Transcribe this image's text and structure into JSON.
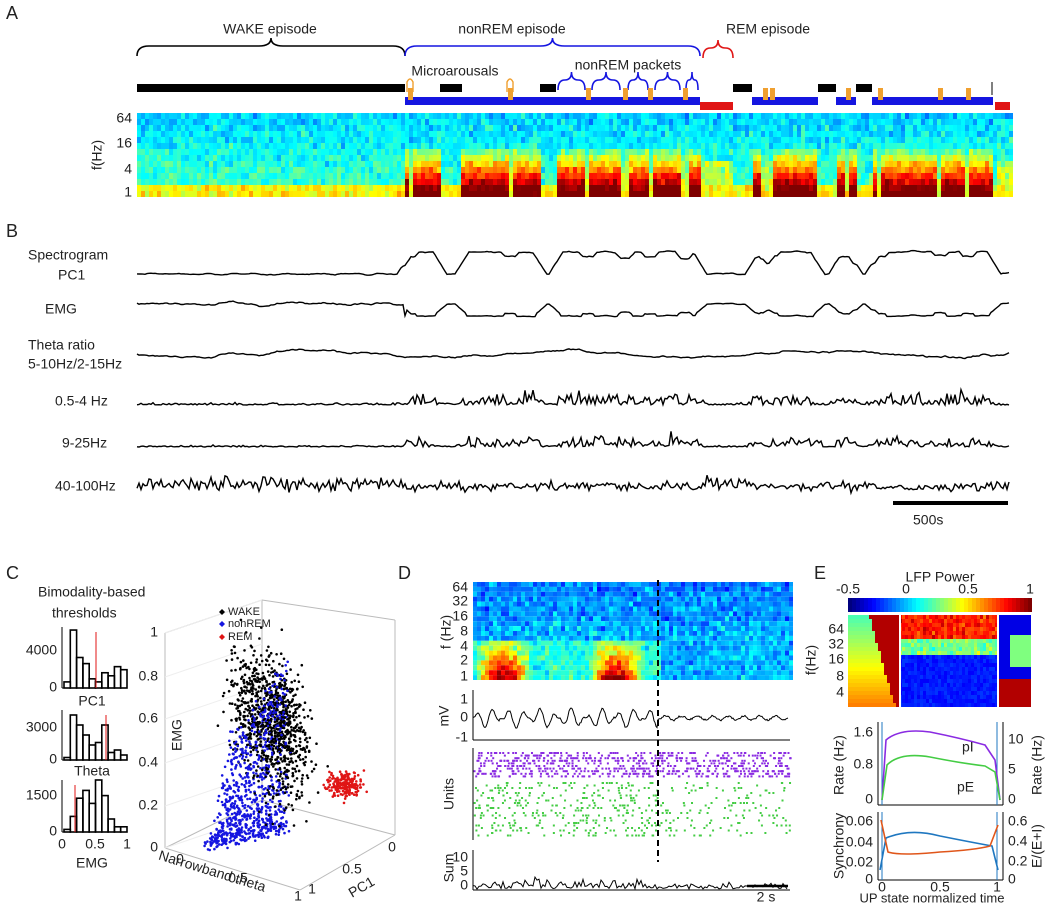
{
  "panel_a": {
    "label": "A",
    "wake": "WAKE episode",
    "nonrem": "nonREM episode",
    "rem": "REM episode",
    "microarousals": "Microarousals",
    "packets": "nonREM packets",
    "ylabel": "f(Hz)",
    "yticks": [
      "64",
      "16",
      "4",
      "1"
    ]
  },
  "panel_b": {
    "label": "B",
    "traces": [
      [
        "Spectrogram",
        "PC1"
      ],
      [
        "EMG"
      ],
      [
        "Theta ratio",
        "5-10Hz/2-15Hz"
      ],
      [
        "0.5-4 Hz"
      ],
      [
        "9-25Hz"
      ],
      [
        "40-100Hz"
      ]
    ],
    "scale": "500s"
  },
  "panel_c": {
    "label": "C",
    "title": [
      "Bimodality-based",
      "thresholds"
    ],
    "histograms": [
      {
        "ytop": "4000",
        "ybottom": "0",
        "label": "PC1"
      },
      {
        "ytop": "3000",
        "ybottom": "0",
        "label": "Theta"
      },
      {
        "ytop": "1500",
        "ybottom": "0",
        "label": "EMG"
      }
    ],
    "hist_xticks": [
      "0",
      "0.5",
      "1"
    ],
    "legend": [
      "WAKE",
      "nonREM",
      "REM"
    ],
    "zlabel": "EMG",
    "zticks": [
      "0",
      "0.2",
      "0.4",
      "0.6",
      "0.8",
      "1"
    ],
    "xlabel": "Narrowband theta",
    "xticks": [
      "0",
      "0.5",
      "1"
    ],
    "ylabel": "PC1",
    "yticks": [
      "0",
      "0.5",
      "1"
    ]
  },
  "panel_d": {
    "label": "D",
    "spec_ylabel": "f (Hz)",
    "spec_yticks": [
      "64",
      "32",
      "16",
      "8",
      "4",
      "2",
      "1"
    ],
    "lfp_ylabel": "mV",
    "lfp_yticks": [
      "1",
      "0",
      "-1"
    ],
    "units_label": "Units",
    "sum_label": "Sum",
    "sum_yticks": [
      "10",
      "5",
      "0"
    ],
    "scale": "2 s"
  },
  "panel_e": {
    "label": "E",
    "colorbar_title": "LFP Power",
    "colorbar_ticks": [
      "-0.5",
      "0",
      "0.5",
      "1"
    ],
    "spec_ylabel": "f(Hz)",
    "spec_yticks": [
      "64",
      "32",
      "16",
      "8",
      "4"
    ],
    "rate_left_label": "Rate (Hz)",
    "rate_left_ticks": [
      "1.6",
      "0.8",
      "0"
    ],
    "rate_right_label": "Rate (Hz)",
    "rate_right_ticks": [
      "10",
      "5",
      "0"
    ],
    "pi": "pI",
    "pe": "pE",
    "sync_label": "Synchrony",
    "sync_ticks": [
      "0.06",
      "0.04",
      "0.02",
      "0"
    ],
    "ratio_label": "E/(E+I)",
    "ratio_ticks": [
      "0.6",
      "0.4",
      "0.2",
      "0"
    ],
    "xticks": [
      "0",
      "0.5",
      "1"
    ],
    "xlabel": "UP state normalized time"
  }
}
